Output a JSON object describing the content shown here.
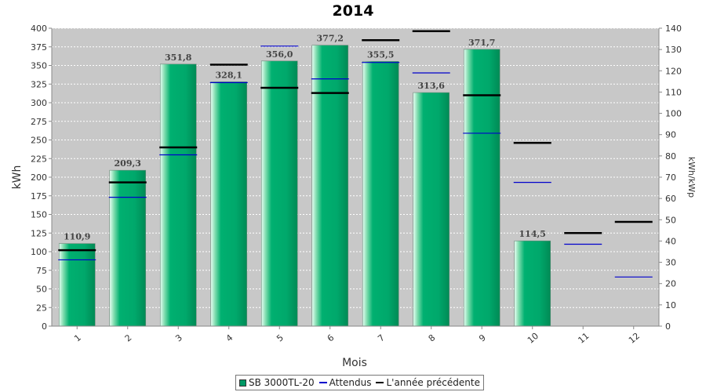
{
  "chart_data": {
    "type": "bar",
    "title": "2014",
    "xlabel": "Mois",
    "ylabel": "kWh",
    "y2label": "kWh/kWp",
    "categories": [
      "1",
      "2",
      "3",
      "4",
      "5",
      "6",
      "7",
      "8",
      "9",
      "10",
      "11",
      "12"
    ],
    "ylim": [
      0,
      400
    ],
    "y2lim": [
      0,
      140
    ],
    "yticks": [
      0,
      25,
      50,
      75,
      100,
      125,
      150,
      175,
      200,
      225,
      250,
      275,
      300,
      325,
      350,
      375,
      400
    ],
    "y2ticks": [
      0,
      10,
      20,
      30,
      40,
      50,
      60,
      70,
      80,
      90,
      100,
      110,
      120,
      130,
      140
    ],
    "grid": true,
    "legend_position": "bottom",
    "series": [
      {
        "name": "SB 3000TL-20",
        "kind": "bar",
        "color": "#00a86b",
        "values": [
          110.9,
          209.3,
          351.8,
          328.1,
          356.0,
          377.2,
          355.5,
          313.6,
          371.7,
          114.5,
          null,
          null
        ],
        "labels": [
          "110,9",
          "209,3",
          "351,8",
          "328,1",
          "356,0",
          "377,2",
          "355,5",
          "313,6",
          "371,7",
          "114,5",
          "",
          ""
        ]
      },
      {
        "name": "Attendus",
        "kind": "marker",
        "color": "#0000cc",
        "values": [
          89,
          173,
          230,
          327,
          376,
          332,
          354,
          340,
          259,
          193,
          110,
          66
        ]
      },
      {
        "name": "L'année précédente",
        "kind": "marker",
        "color": "#000000",
        "values": [
          102,
          193,
          240,
          351,
          320,
          313,
          384,
          396,
          310,
          246,
          125,
          140
        ]
      }
    ]
  }
}
